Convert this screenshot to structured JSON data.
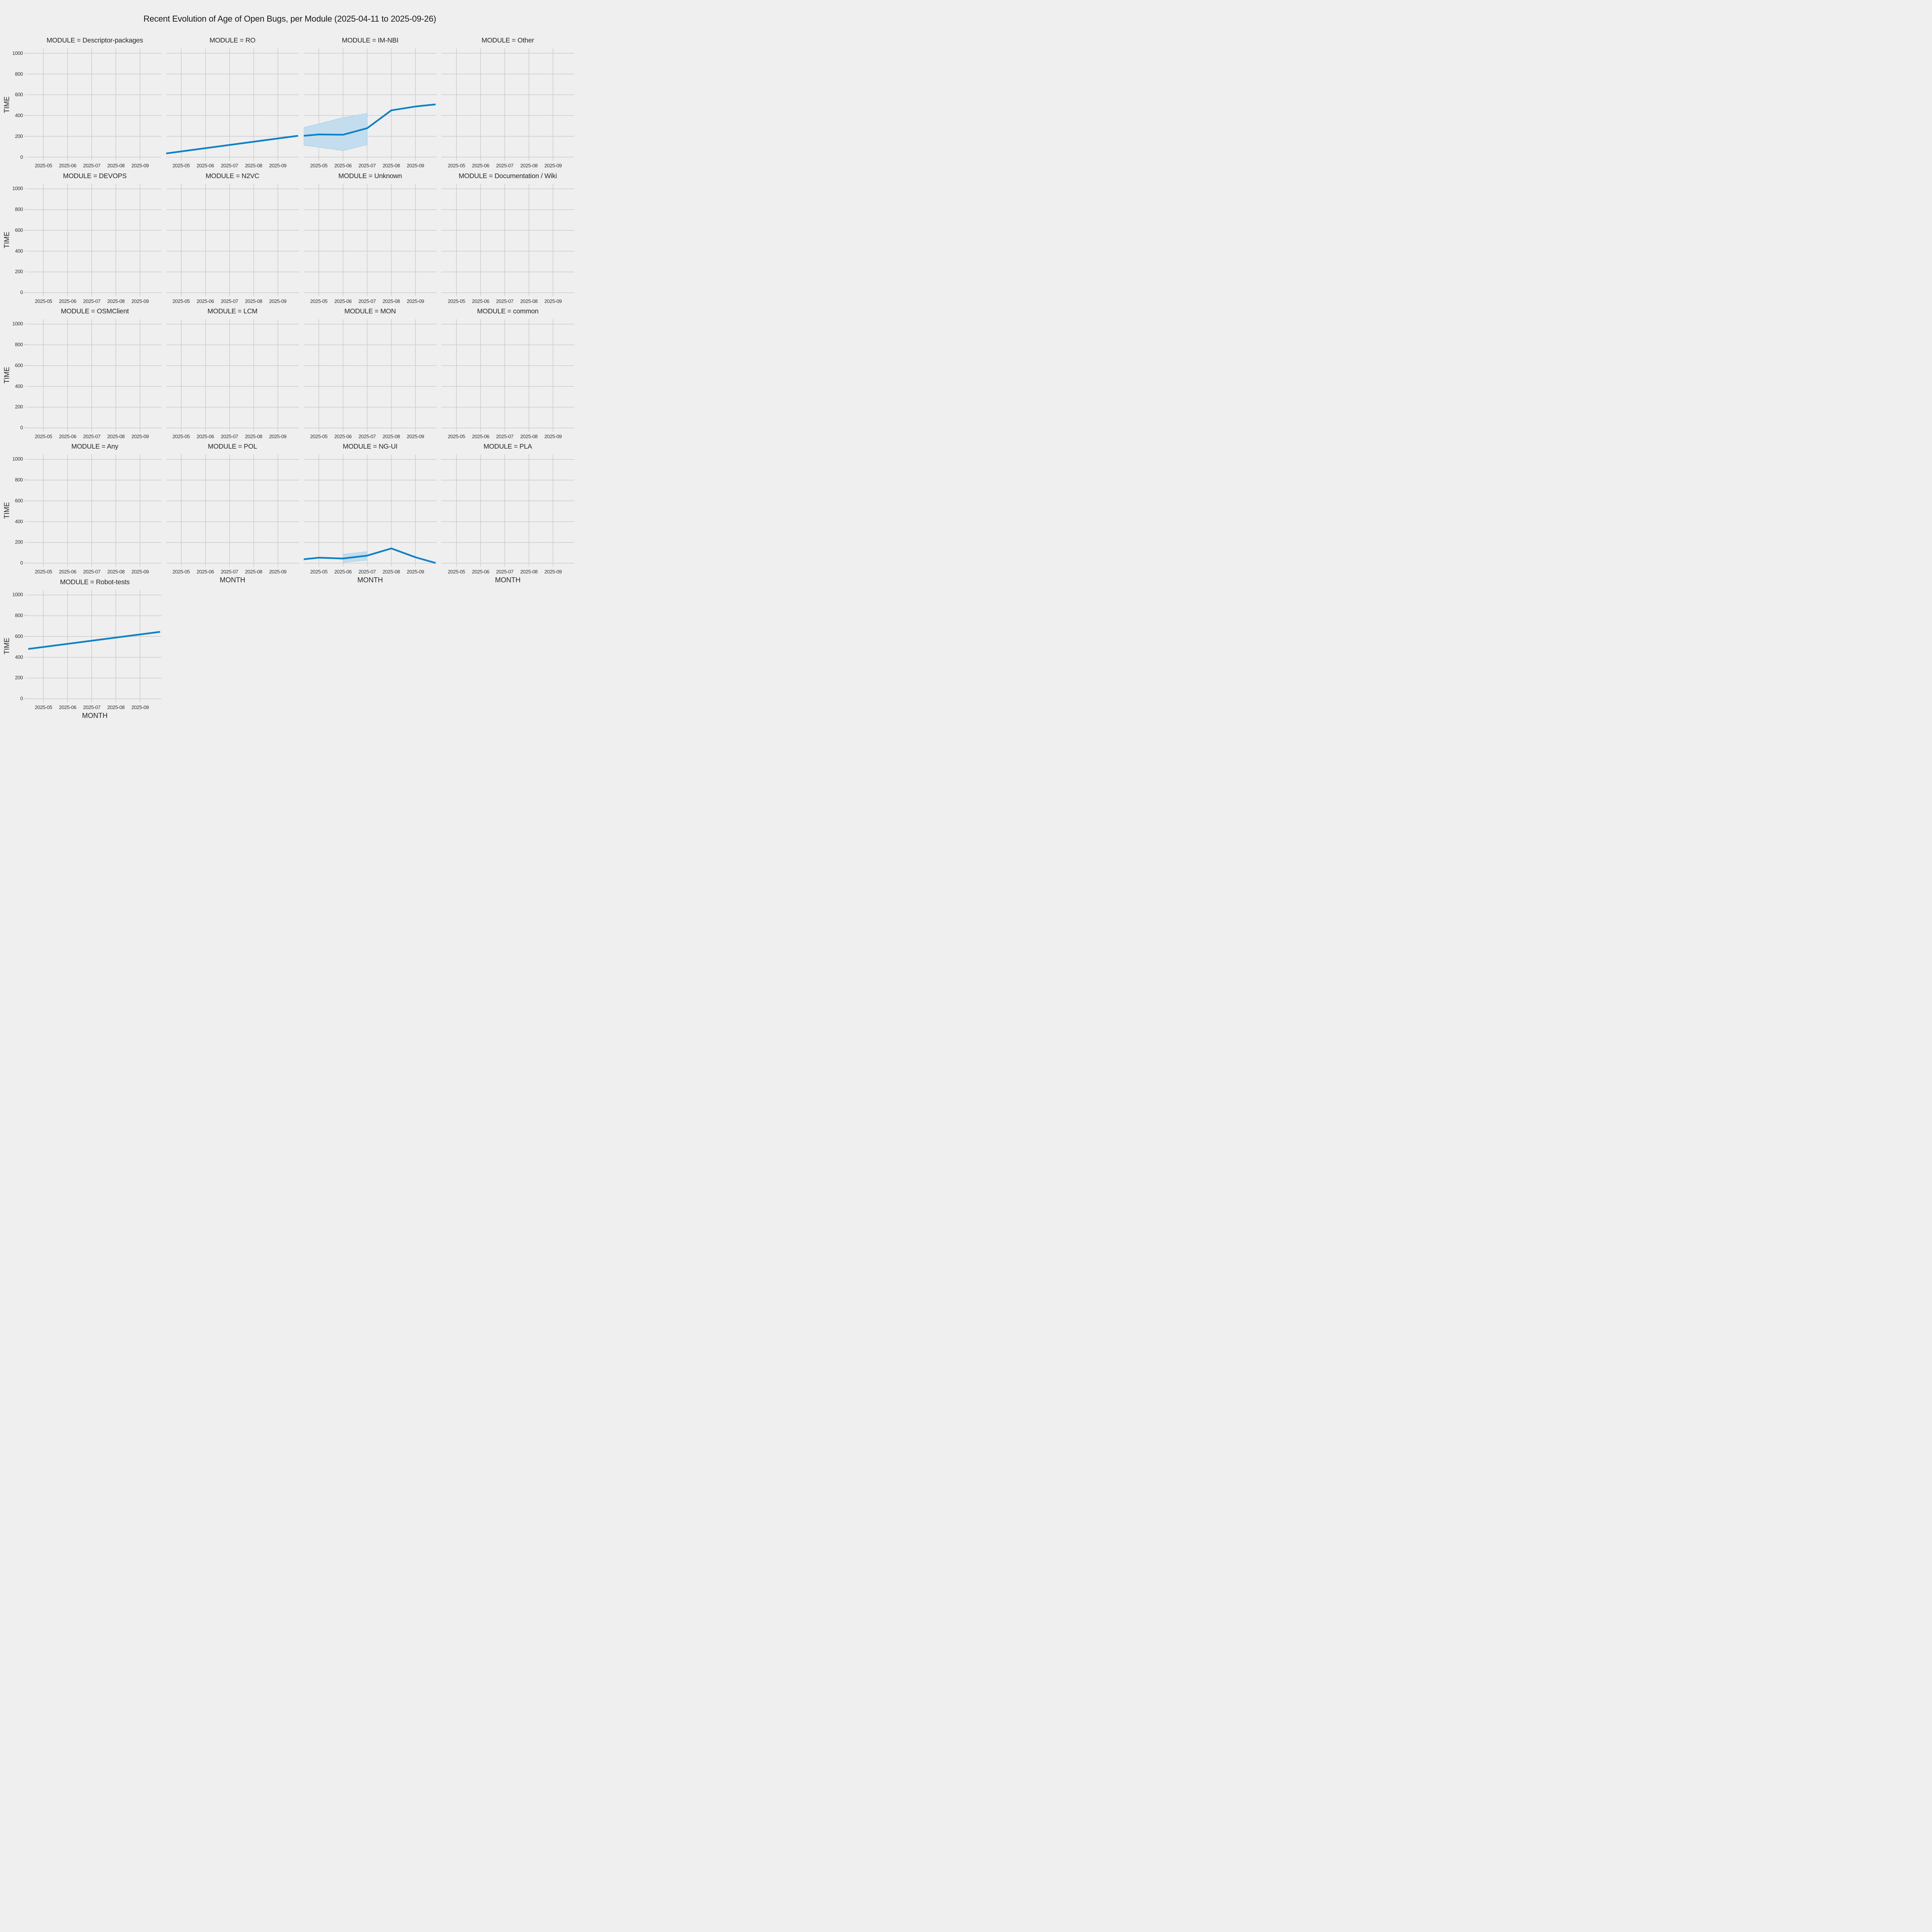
{
  "chart_data": {
    "type": "line",
    "title": "Recent Evolution of Age of Open Bugs, per Module (2025-04-11 to 2025-09-26)",
    "facet_by": "MODULE",
    "xlabel": "MONTH",
    "ylabel": "TIME",
    "x_unit": "months_since_2025-05-01",
    "x_domain": [
      -0.628,
      4.876
    ],
    "date_range": [
      "2025-04-11",
      "2025-09-26"
    ],
    "ylim": [
      0,
      1000
    ],
    "yticks": [
      0,
      200,
      400,
      600,
      800,
      1000
    ],
    "xtick_labels": [
      "2025-05",
      "2025-06",
      "2025-07",
      "2025-08",
      "2025-09"
    ],
    "xtick_positions": [
      0,
      1,
      2,
      3,
      4
    ],
    "grid": true,
    "legend": "none",
    "facets": [
      {
        "label": "MODULE = Descriptor-packages",
        "row": 0,
        "col": 0,
        "show_yticks": true,
        "show_ylabel": true,
        "show_xlabel": false,
        "line": null,
        "band": null
      },
      {
        "label": "MODULE = RO",
        "row": 0,
        "col": 1,
        "show_yticks": false,
        "show_ylabel": false,
        "show_xlabel": false,
        "line": [
          [
            -0.628,
            35
          ],
          [
            4.833,
            205
          ]
        ],
        "band": null
      },
      {
        "label": "MODULE = IM-NBI",
        "row": 0,
        "col": 2,
        "show_yticks": false,
        "show_ylabel": false,
        "show_xlabel": false,
        "line": [
          [
            -0.628,
            205
          ],
          [
            0,
            218
          ],
          [
            1,
            215
          ],
          [
            2,
            278
          ],
          [
            3,
            450
          ],
          [
            4,
            487
          ],
          [
            4.833,
            507
          ]
        ],
        "band": {
          "x": [
            -0.628,
            0,
            1,
            2
          ],
          "upper": [
            285,
            320,
            380,
            420
          ],
          "lower": [
            113,
            95,
            62,
            119
          ]
        }
      },
      {
        "label": "MODULE = Other",
        "row": 0,
        "col": 3,
        "show_yticks": false,
        "show_ylabel": false,
        "show_xlabel": false,
        "line": null,
        "band": null
      },
      {
        "label": "MODULE = DEVOPS",
        "row": 1,
        "col": 0,
        "show_yticks": true,
        "show_ylabel": true,
        "show_xlabel": false,
        "line": null,
        "band": null
      },
      {
        "label": "MODULE = N2VC",
        "row": 1,
        "col": 1,
        "show_yticks": false,
        "show_ylabel": false,
        "show_xlabel": false,
        "line": null,
        "band": null
      },
      {
        "label": "MODULE = Unknown",
        "row": 1,
        "col": 2,
        "show_yticks": false,
        "show_ylabel": false,
        "show_xlabel": false,
        "line": null,
        "band": null
      },
      {
        "label": "MODULE = Documentation / Wiki",
        "row": 1,
        "col": 3,
        "show_yticks": false,
        "show_ylabel": false,
        "show_xlabel": false,
        "line": null,
        "band": null
      },
      {
        "label": "MODULE = OSMClient",
        "row": 2,
        "col": 0,
        "show_yticks": true,
        "show_ylabel": true,
        "show_xlabel": false,
        "line": null,
        "band": null
      },
      {
        "label": "MODULE = LCM",
        "row": 2,
        "col": 1,
        "show_yticks": false,
        "show_ylabel": false,
        "show_xlabel": false,
        "line": null,
        "band": null
      },
      {
        "label": "MODULE = MON",
        "row": 2,
        "col": 2,
        "show_yticks": false,
        "show_ylabel": false,
        "show_xlabel": false,
        "line": null,
        "band": null
      },
      {
        "label": "MODULE = common",
        "row": 2,
        "col": 3,
        "show_yticks": false,
        "show_ylabel": false,
        "show_xlabel": false,
        "line": null,
        "band": null
      },
      {
        "label": "MODULE = Any",
        "row": 3,
        "col": 0,
        "show_yticks": true,
        "show_ylabel": true,
        "show_xlabel": false,
        "line": null,
        "band": null
      },
      {
        "label": "MODULE = POL",
        "row": 3,
        "col": 1,
        "show_yticks": false,
        "show_ylabel": false,
        "show_xlabel": true,
        "line": null,
        "band": null
      },
      {
        "label": "MODULE = NG-UI",
        "row": 3,
        "col": 2,
        "show_yticks": false,
        "show_ylabel": false,
        "show_xlabel": true,
        "line": [
          [
            -0.628,
            38
          ],
          [
            0,
            53
          ],
          [
            1,
            45
          ],
          [
            2,
            73
          ],
          [
            3,
            142
          ],
          [
            4,
            57
          ],
          [
            4.833,
            2
          ]
        ],
        "band": {
          "x": [
            1,
            2
          ],
          "upper": [
            85,
            112
          ],
          "lower": [
            7,
            30
          ]
        }
      },
      {
        "label": "MODULE = PLA",
        "row": 3,
        "col": 3,
        "show_yticks": false,
        "show_ylabel": false,
        "show_xlabel": true,
        "line": null,
        "band": null
      },
      {
        "label": "MODULE = Robot-tests",
        "row": 4,
        "col": 0,
        "show_yticks": true,
        "show_ylabel": true,
        "show_xlabel": true,
        "line": [
          [
            -0.628,
            480
          ],
          [
            4.833,
            645
          ]
        ],
        "band": null
      }
    ]
  },
  "colors": {
    "background": "#efefef",
    "grid": "#cbcbcb",
    "line": "#0e82c6",
    "band_fill": "#c3ddee",
    "band_edge": "#9fcbe6",
    "title": "#1a1a1a",
    "facet_title": "#262626",
    "tick": "#333333"
  }
}
